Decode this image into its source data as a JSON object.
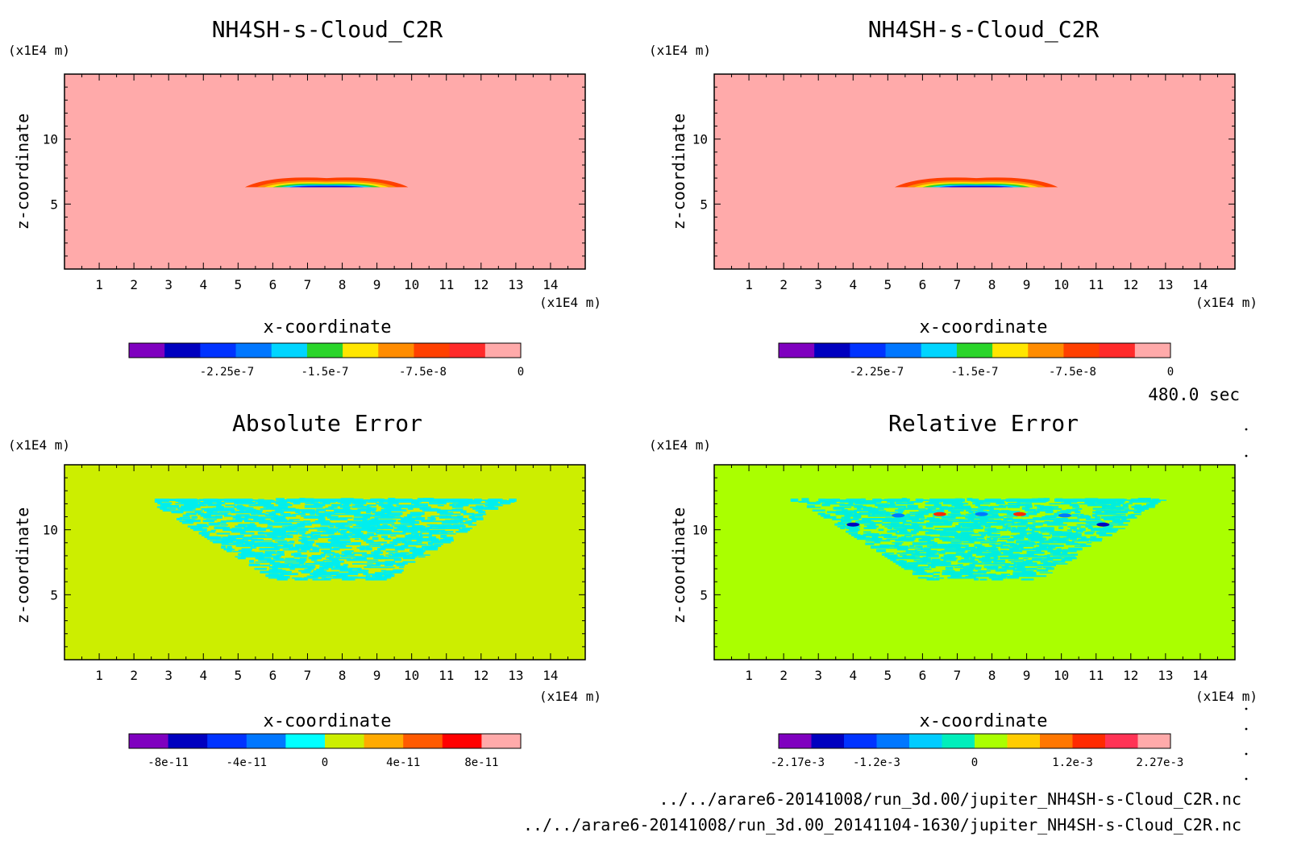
{
  "time_label": "480.0 sec",
  "footer_files": [
    "../../arare6-20141008/run_3d.00/jupiter_NH4SH-s-Cloud_C2R.nc",
    "../../arare6-20141008/run_3d.00_20141104-1630/jupiter_NH4SH-s-Cloud_C2R.nc"
  ],
  "chart_data": [
    {
      "type": "heatmap",
      "title": "NH4SH-s-Cloud_C2R",
      "xlabel": "x-coordinate",
      "ylabel": "z-coordinate",
      "x_unit": "(x1E4 m)",
      "y_unit": "(x1E4 m)",
      "xlim": [
        0,
        15
      ],
      "ylim": [
        0,
        15
      ],
      "x_ticks": [
        "1",
        "2",
        "3",
        "4",
        "5",
        "6",
        "7",
        "8",
        "9",
        "10",
        "11",
        "12",
        "13",
        "14"
      ],
      "y_ticks": [
        "5",
        "10"
      ],
      "background_color": "#ffaaaa",
      "feature": {
        "description_values": "thin lens-shaped cloud layer",
        "x_range": [
          5.2,
          9.9
        ],
        "z_range": [
          6.3,
          7.0
        ]
      },
      "colorbar": {
        "colors": [
          "#7f00bf",
          "#0000bf",
          "#0033ff",
          "#0077ff",
          "#00d5ff",
          "#2ad52a",
          "#ffe600",
          "#ff8c00",
          "#ff4000",
          "#ff2a2a",
          "#ffaaaa"
        ],
        "tick_labels": [
          "-2.25e-7",
          "-1.5e-7",
          "-7.5e-8",
          "0"
        ],
        "tick_values": [
          -2.25e-07,
          -1.5e-07,
          -7.5e-08,
          0
        ],
        "range": [
          -3e-07,
          0
        ]
      }
    },
    {
      "type": "heatmap",
      "title": "NH4SH-s-Cloud_C2R",
      "xlabel": "x-coordinate",
      "ylabel": "z-coordinate",
      "x_unit": "(x1E4 m)",
      "y_unit": "(x1E4 m)",
      "xlim": [
        0,
        15
      ],
      "ylim": [
        0,
        15
      ],
      "x_ticks": [
        "1",
        "2",
        "3",
        "4",
        "5",
        "6",
        "7",
        "8",
        "9",
        "10",
        "11",
        "12",
        "13",
        "14"
      ],
      "y_ticks": [
        "5",
        "10"
      ],
      "background_color": "#ffaaaa",
      "feature": {
        "description_values": "thin lens-shaped cloud layer",
        "x_range": [
          5.2,
          9.9
        ],
        "z_range": [
          6.3,
          7.0
        ]
      },
      "colorbar": {
        "colors": [
          "#7f00bf",
          "#0000bf",
          "#0033ff",
          "#0077ff",
          "#00d5ff",
          "#2ad52a",
          "#ffe600",
          "#ff8c00",
          "#ff4000",
          "#ff2a2a",
          "#ffaaaa"
        ],
        "tick_labels": [
          "-2.25e-7",
          "-1.5e-7",
          "-7.5e-8",
          "0"
        ],
        "tick_values": [
          -2.25e-07,
          -1.5e-07,
          -7.5e-08,
          0
        ],
        "range": [
          -3e-07,
          0
        ]
      }
    },
    {
      "type": "heatmap",
      "title": "Absolute Error",
      "xlabel": "x-coordinate",
      "ylabel": "z-coordinate",
      "x_unit": "(x1E4 m)",
      "y_unit": "(x1E4 m)",
      "xlim": [
        0,
        15
      ],
      "ylim": [
        0,
        15
      ],
      "x_ticks": [
        "1",
        "2",
        "3",
        "4",
        "5",
        "6",
        "7",
        "8",
        "9",
        "10",
        "11",
        "12",
        "13",
        "14"
      ],
      "y_ticks": [
        "5",
        "10"
      ],
      "background_color": "#ccee00",
      "feature": {
        "description_values": "noisy error region shaped like inverted trapezoid",
        "x_range": [
          2.3,
          12.8
        ],
        "z_range": [
          6.1,
          12.3
        ],
        "color": "#00eeee"
      },
      "colorbar": {
        "colors": [
          "#7f00bf",
          "#0000bf",
          "#0033ff",
          "#0077ff",
          "#00ffff",
          "#ccee00",
          "#ffaa00",
          "#ff5a00",
          "#ff0000",
          "#ffaaaa"
        ],
        "tick_labels": [
          "-8e-11",
          "-4e-11",
          "0",
          "4e-11",
          "8e-11"
        ],
        "tick_values": [
          -8e-11,
          -4e-11,
          0,
          4e-11,
          8e-11
        ],
        "range": [
          -1e-10,
          1e-10
        ]
      }
    },
    {
      "type": "heatmap",
      "title": "Relative Error",
      "xlabel": "x-coordinate",
      "ylabel": "z-coordinate",
      "x_unit": "(x1E4 m)",
      "y_unit": "(x1E4 m)",
      "xlim": [
        0,
        15
      ],
      "ylim": [
        0,
        15
      ],
      "x_ticks": [
        "1",
        "2",
        "3",
        "4",
        "5",
        "6",
        "7",
        "8",
        "9",
        "10",
        "11",
        "12",
        "13",
        "14"
      ],
      "y_ticks": [
        "5",
        "10"
      ],
      "background_color": "#aaff00",
      "feature": {
        "description_values": "noisy error region shaped like inverted trapezoid with few extreme spots",
        "x_range": [
          2.3,
          12.8
        ],
        "z_range": [
          6.1,
          12.3
        ],
        "color": "#00eedd"
      },
      "colorbar": {
        "colors": [
          "#7f00bf",
          "#0000bf",
          "#0033ff",
          "#0077ff",
          "#00ccff",
          "#00eebb",
          "#aaff00",
          "#ffcc00",
          "#ff7700",
          "#ff2a00",
          "#ff3355",
          "#ffaaaa"
        ],
        "tick_labels": [
          "-2.17e-3",
          "-1.2e-3",
          "0",
          "1.2e-3",
          "2.27e-3"
        ],
        "tick_values": [
          -0.00217,
          -0.0012,
          0,
          0.0012,
          0.00227
        ],
        "range": [
          -0.0024,
          0.0024
        ]
      }
    }
  ]
}
